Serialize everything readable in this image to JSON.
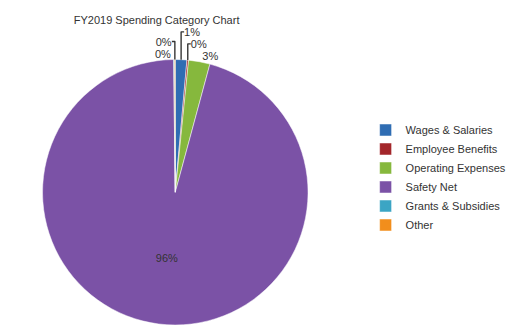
{
  "chart_data": {
    "type": "pie",
    "title": "FY2019 Spending Category Chart",
    "categories": [
      "Wages & Salaries",
      "Employee Benefits",
      "Operating Expenses",
      "Safety Net",
      "Grants & Subsidies",
      "Other"
    ],
    "values": [
      1.4,
      0.2,
      2.6,
      95.6,
      0.1,
      0.1
    ],
    "value_labels": [
      "1%",
      "0%",
      "3%",
      "96%",
      "0%",
      "0%"
    ],
    "colors": [
      "#2f6db3",
      "#a3262a",
      "#86b83d",
      "#7b52a6",
      "#3ba5c4",
      "#f28e1c"
    ],
    "data_labels": true,
    "legend": "right"
  }
}
